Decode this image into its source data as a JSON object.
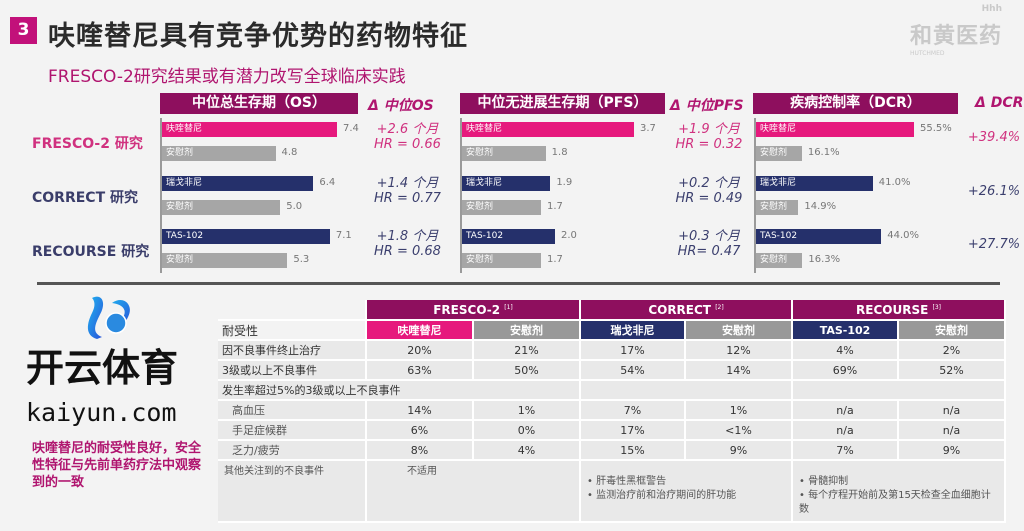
{
  "header": {
    "section_number": "3",
    "title": "呋喹替尼具有竞争优势的药物特征",
    "subtitle": "FRESCO-2研究结果或有潜力改写全球临床实践",
    "logo_cn": "和黄医药",
    "logo_en": "HUTCHMED",
    "logo_tag": "Hhh"
  },
  "colors": {
    "fruquintinib": "#e6197d",
    "comparator": "#25306b",
    "placebo": "#a6a6a6",
    "header": "#8e0f5e"
  },
  "chart_data": [
    {
      "type": "bar",
      "title": "中位总生存期（OS）",
      "delta_title": "Δ 中位OS",
      "unit": "months",
      "max": 7.4,
      "groups": [
        {
          "study": "FRESCO-2 研究",
          "drug": "呋喹替尼",
          "drug_value": 7.4,
          "drug_label": "7.4",
          "placebo": "安慰剂",
          "placebo_value": 4.8,
          "placebo_label": "4.8",
          "delta": "+2.6 个月",
          "hr": "HR = 0.66"
        },
        {
          "study": "CORRECT 研究",
          "drug": "瑞戈非尼",
          "drug_value": 6.4,
          "drug_label": "6.4",
          "placebo": "安慰剂",
          "placebo_value": 5.0,
          "placebo_label": "5.0",
          "delta": "+1.4 个月",
          "hr": "HR = 0.77"
        },
        {
          "study": "RECOURSE 研究",
          "drug": "TAS-102",
          "drug_value": 7.1,
          "drug_label": "7.1",
          "placebo": "安慰剂",
          "placebo_value": 5.3,
          "placebo_label": "5.3",
          "delta": "+1.8 个月",
          "hr": "HR = 0.68"
        }
      ]
    },
    {
      "type": "bar",
      "title": "中位无进展生存期（PFS）",
      "delta_title": "Δ 中位PFS",
      "unit": "months",
      "max": 3.7,
      "groups": [
        {
          "drug": "呋喹替尼",
          "drug_value": 3.7,
          "drug_label": "3.7",
          "placebo": "安慰剂",
          "placebo_value": 1.8,
          "placebo_label": "1.8",
          "delta": "+1.9 个月",
          "hr": "HR = 0.32"
        },
        {
          "drug": "瑞戈非尼",
          "drug_value": 1.9,
          "drug_label": "1.9",
          "placebo": "安慰剂",
          "placebo_value": 1.7,
          "placebo_label": "1.7",
          "delta": "+0.2 个月",
          "hr": "HR = 0.49"
        },
        {
          "drug": "TAS-102",
          "drug_value": 2.0,
          "drug_label": "2.0",
          "placebo": "安慰剂",
          "placebo_value": 1.7,
          "placebo_label": "1.7",
          "delta": "+0.3 个月",
          "hr": "HR= 0.47"
        }
      ]
    },
    {
      "type": "bar",
      "title": "疾病控制率（DCR）",
      "delta_title": "Δ DCR",
      "unit": "%",
      "max": 55.5,
      "groups": [
        {
          "drug": "呋喹替尼",
          "drug_value": 55.5,
          "drug_label": "55.5%",
          "placebo": "安慰剂",
          "placebo_value": 16.1,
          "placebo_label": "16.1%",
          "delta": "+39.4%"
        },
        {
          "drug": "瑞戈非尼",
          "drug_value": 41.0,
          "drug_label": "41.0%",
          "placebo": "安慰剂",
          "placebo_value": 14.9,
          "placebo_label": "14.9%",
          "delta": "+26.1%"
        },
        {
          "drug": "TAS-102",
          "drug_value": 44.0,
          "drug_label": "44.0%",
          "placebo": "安慰剂",
          "placebo_value": 16.3,
          "placebo_label": "16.3%",
          "delta": "+27.7%"
        }
      ]
    }
  ],
  "table": {
    "corner": "耐受性",
    "studies": [
      {
        "name": "FRESCO-2",
        "ref": "[1]"
      },
      {
        "name": "CORRECT",
        "ref": "[2]"
      },
      {
        "name": "RECOURSE",
        "ref": "[3]"
      }
    ],
    "arms": [
      "呋喹替尼",
      "安慰剂",
      "瑞戈非尼",
      "安慰剂",
      "TAS-102",
      "安慰剂"
    ],
    "rows": [
      {
        "label": "因不良事件终止治疗",
        "values": [
          "20%",
          "21%",
          "17%",
          "12%",
          "4%",
          "2%"
        ]
      },
      {
        "label": "3级或以上不良事件",
        "values": [
          "63%",
          "50%",
          "54%",
          "14%",
          "69%",
          "52%"
        ]
      },
      {
        "label": "发生率超过5%的3级或以上不良事件",
        "values": []
      },
      {
        "label": "高血压",
        "values": [
          "14%",
          "1%",
          "7%",
          "1%",
          "n/a",
          "n/a"
        ]
      },
      {
        "label": "手足症候群",
        "values": [
          "6%",
          "0%",
          "17%",
          "<1%",
          "n/a",
          "n/a"
        ]
      },
      {
        "label": "乏力/疲劳",
        "values": [
          "8%",
          "4%",
          "15%",
          "9%",
          "7%",
          "9%"
        ]
      }
    ],
    "other": {
      "label": "其他关注到的不良事件",
      "fresco": "不适用",
      "correct": [
        "肝毒性黑框警告",
        "监测治疗前和治疗期间的肝功能"
      ],
      "recourse": [
        "骨髓抑制",
        "每个疗程开始前及第15天检查全血细胞计数"
      ]
    }
  },
  "note": "呋喹替尼的耐受性良好，安全性特征与先前单药疗法中观察到的一致",
  "watermark": {
    "cn": "开云体育",
    "en": "kaiyun.com"
  }
}
